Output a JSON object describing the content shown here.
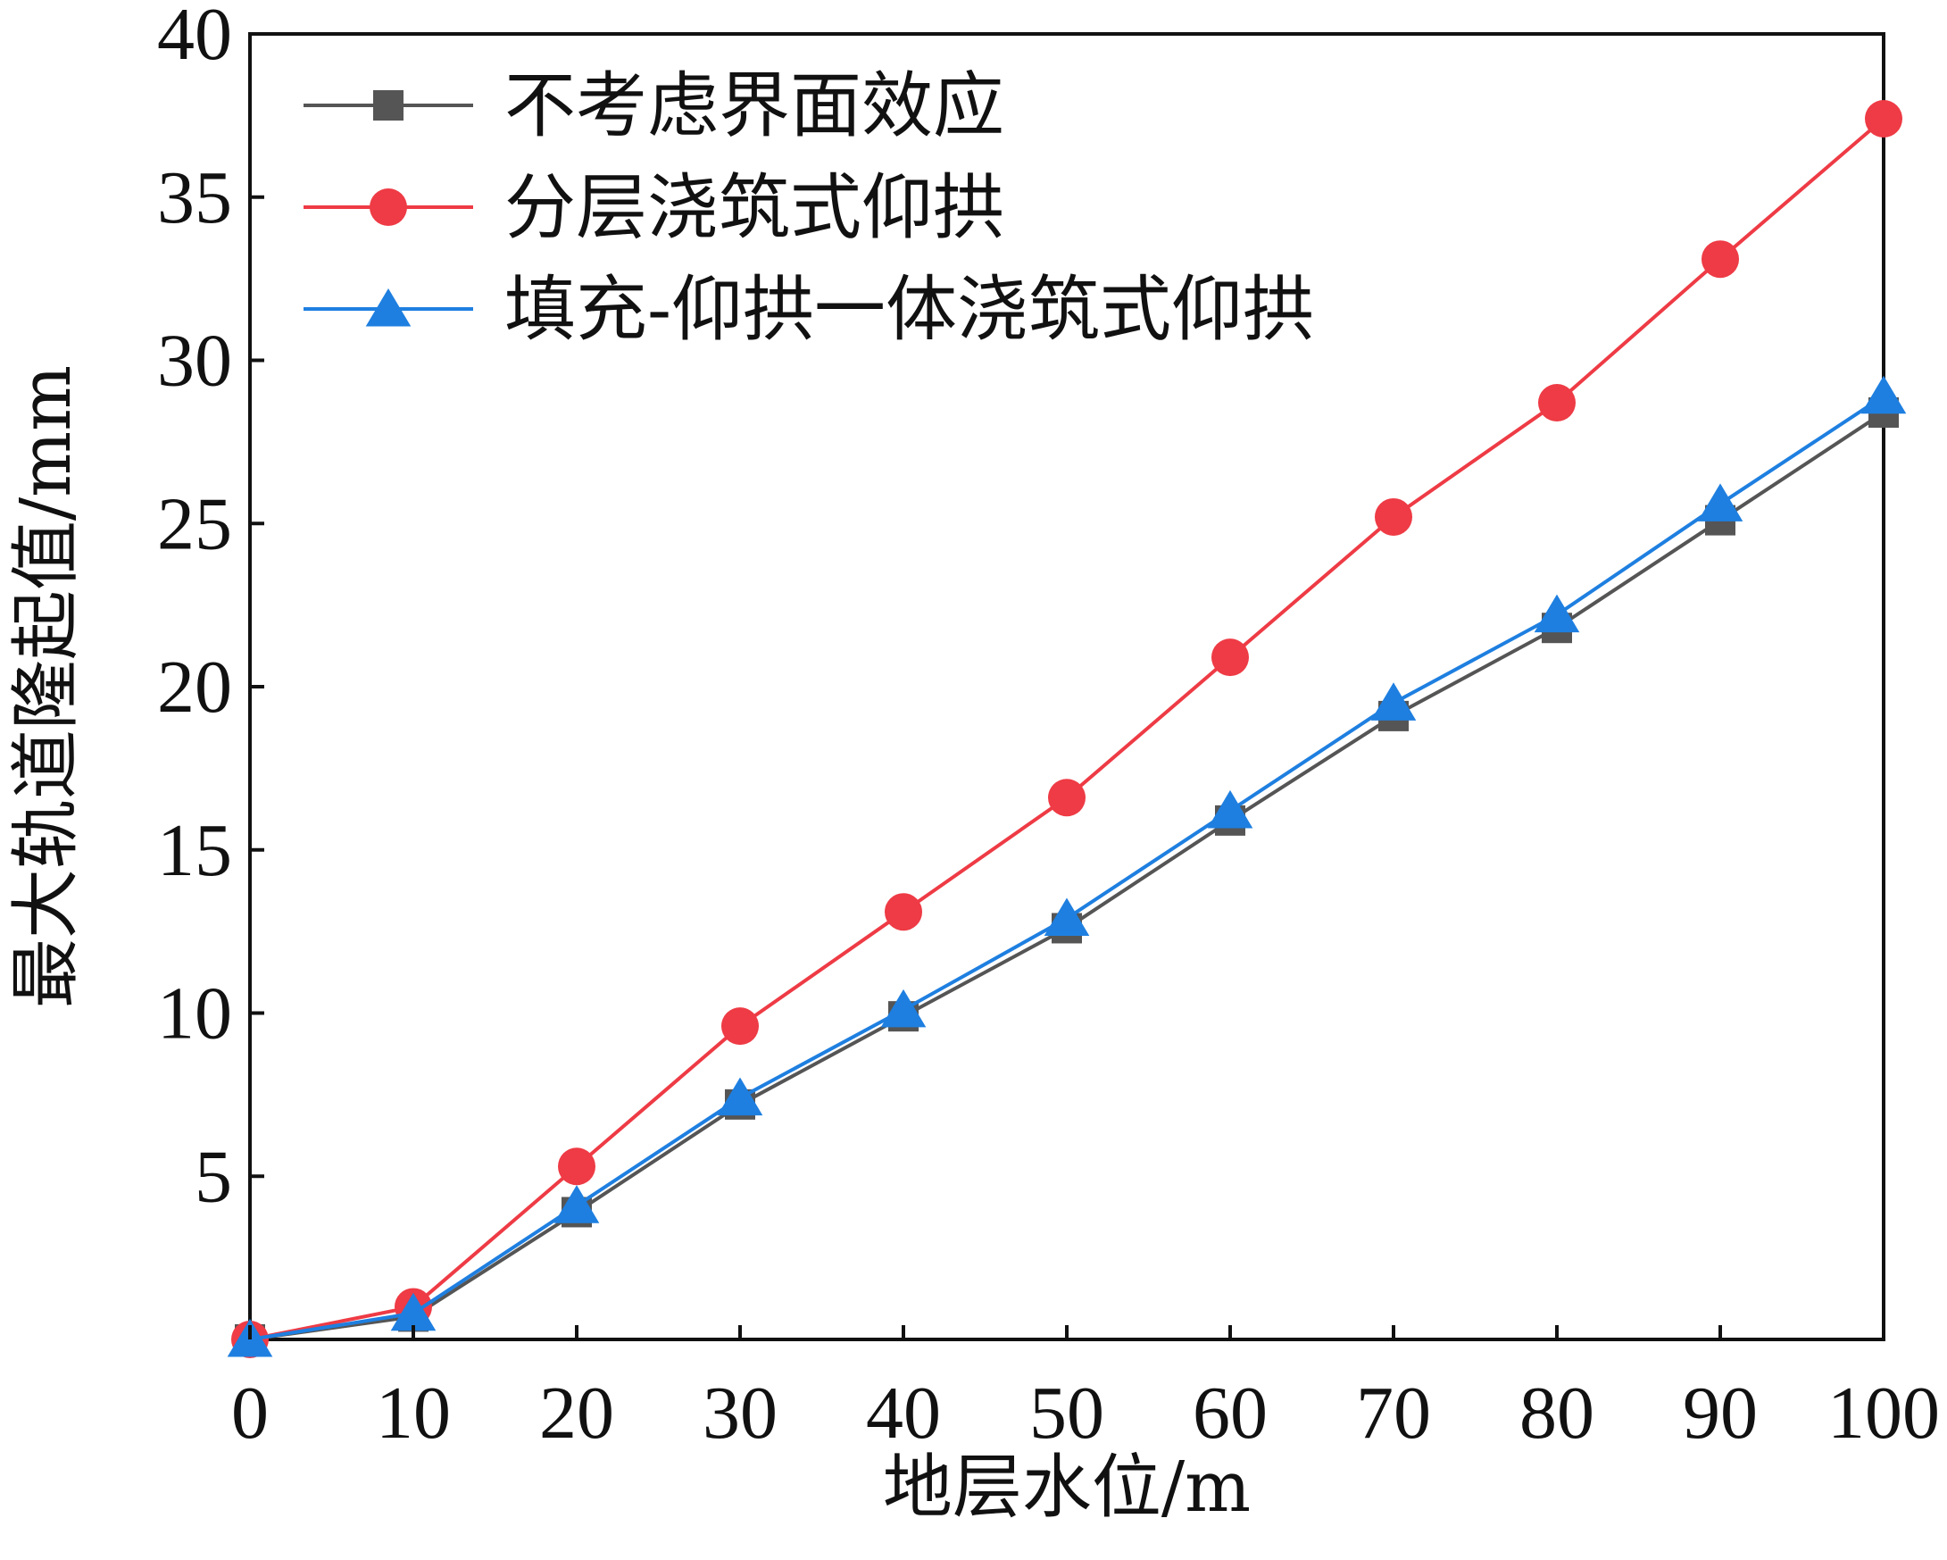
{
  "chart_data": {
    "type": "line",
    "title": "",
    "xlabel": "地层水位/m",
    "ylabel": "最大轨道隆起值/mm",
    "xlim": [
      0,
      100
    ],
    "ylim": [
      0,
      40
    ],
    "x_ticks": [
      0,
      10,
      20,
      30,
      40,
      50,
      60,
      70,
      80,
      90,
      100
    ],
    "y_ticks": [
      5,
      10,
      15,
      20,
      25,
      30,
      35,
      40
    ],
    "x_tick_labels": [
      "0",
      "10",
      "20",
      "30",
      "40",
      "50",
      "60",
      "70",
      "80",
      "90",
      "100"
    ],
    "y_tick_labels": [
      "5",
      "10",
      "15",
      "20",
      "25",
      "30",
      "35",
      "40"
    ],
    "grid": false,
    "legend_position": "top-left",
    "x": [
      0,
      10,
      20,
      30,
      40,
      50,
      60,
      70,
      80,
      90,
      100
    ],
    "series": [
      {
        "name": "不考虑界面效应",
        "marker": "square",
        "color": "#555555",
        "values": [
          0.0,
          0.7,
          3.9,
          7.2,
          9.9,
          12.6,
          15.9,
          19.1,
          21.8,
          25.1,
          28.4
        ]
      },
      {
        "name": "分层浇筑式仰拱",
        "marker": "circle",
        "color": "#EE3B45",
        "values": [
          0.0,
          1.0,
          5.3,
          9.6,
          13.1,
          16.6,
          20.9,
          25.2,
          28.7,
          33.1,
          37.4
        ]
      },
      {
        "name": "填充-仰拱一体浇筑式仰拱",
        "marker": "triangle",
        "color": "#1E7FE0",
        "values": [
          0.0,
          0.8,
          4.1,
          7.4,
          10.1,
          12.9,
          16.2,
          19.5,
          22.2,
          25.6,
          28.9
        ]
      }
    ]
  }
}
